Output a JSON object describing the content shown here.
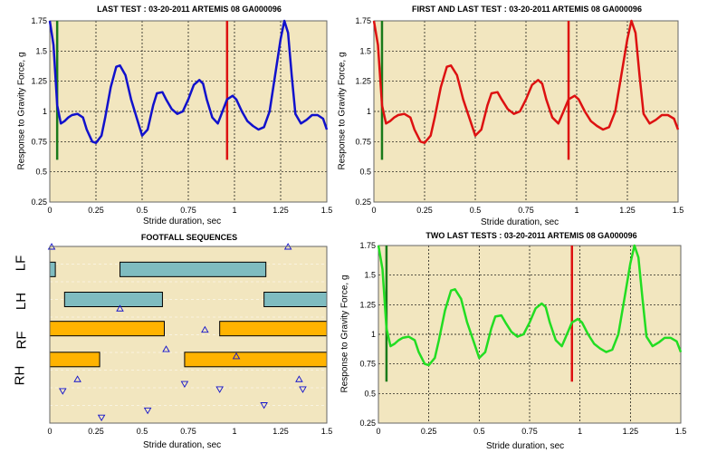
{
  "chart_data": [
    {
      "type": "line",
      "title": "LAST TEST : 03-20-2011 ARTEMIS 08 GA000096",
      "xlabel": "Stride duration, sec",
      "ylabel": "Response to Gravity Force, g",
      "xlim": [
        0,
        1.5
      ],
      "ylim": [
        0.25,
        1.75
      ],
      "grid": true,
      "xticks": [
        "0",
        "0.25",
        "0.5",
        "0.75",
        "1",
        "1.25",
        "1.5"
      ],
      "yticks": [
        "0.25",
        "0.5",
        "0.75",
        "1",
        "1.25",
        "1.5",
        "1.75"
      ],
      "background": "#f2e6bf",
      "vlines": [
        {
          "x": 0.04,
          "y": [
            0.6,
            1.75
          ],
          "color": "#1a7a1a"
        },
        {
          "x": 0.96,
          "y": [
            0.6,
            1.75
          ],
          "color": "#dd1111"
        }
      ],
      "series": [
        {
          "color": "#1111cc",
          "x": [
            0.0,
            0.02,
            0.04,
            0.06,
            0.08,
            0.1,
            0.12,
            0.15,
            0.18,
            0.2,
            0.23,
            0.25,
            0.28,
            0.3,
            0.33,
            0.36,
            0.38,
            0.41,
            0.44,
            0.47,
            0.5,
            0.53,
            0.56,
            0.58,
            0.61,
            0.63,
            0.66,
            0.69,
            0.72,
            0.75,
            0.78,
            0.81,
            0.83,
            0.85,
            0.88,
            0.91,
            0.93,
            0.96,
            0.99,
            1.01,
            1.04,
            1.07,
            1.1,
            1.13,
            1.16,
            1.19,
            1.22,
            1.25,
            1.27,
            1.29,
            1.31,
            1.33,
            1.36,
            1.39,
            1.42,
            1.45,
            1.48,
            1.5
          ],
          "y": [
            1.75,
            1.55,
            1.05,
            0.9,
            0.92,
            0.95,
            0.97,
            0.98,
            0.95,
            0.85,
            0.75,
            0.74,
            0.8,
            0.95,
            1.2,
            1.37,
            1.38,
            1.3,
            1.1,
            0.95,
            0.8,
            0.85,
            1.05,
            1.15,
            1.16,
            1.1,
            1.02,
            0.98,
            1.0,
            1.1,
            1.22,
            1.26,
            1.23,
            1.1,
            0.95,
            0.9,
            0.98,
            1.1,
            1.13,
            1.1,
            1.0,
            0.92,
            0.88,
            0.85,
            0.87,
            1.0,
            1.3,
            1.6,
            1.75,
            1.65,
            1.3,
            0.98,
            0.9,
            0.93,
            0.97,
            0.97,
            0.94,
            0.85
          ]
        }
      ]
    },
    {
      "type": "line",
      "title": "FIRST AND LAST TEST : 03-20-2011 ARTEMIS 08 GA000096",
      "xlabel": "Stride duration, sec",
      "ylabel": "Response to Gravity Force, g",
      "xlim": [
        0,
        1.5
      ],
      "ylim": [
        0.25,
        1.75
      ],
      "grid": true,
      "xticks": [
        "0",
        "0.25",
        "0.5",
        "0.75",
        "1",
        "1.25",
        "1.5"
      ],
      "yticks": [
        "0.25",
        "0.5",
        "0.75",
        "1",
        "1.25",
        "1.5",
        "1.75"
      ],
      "background": "#f2e6bf",
      "vlines": [
        {
          "x": 0.04,
          "y": [
            0.6,
            1.75
          ],
          "color": "#1a7a1a"
        },
        {
          "x": 0.96,
          "y": [
            0.6,
            1.75
          ],
          "color": "#dd1111"
        }
      ],
      "series": [
        {
          "color": "#dd1111",
          "x": [
            0.0,
            0.02,
            0.04,
            0.06,
            0.08,
            0.1,
            0.12,
            0.15,
            0.18,
            0.2,
            0.23,
            0.25,
            0.28,
            0.3,
            0.33,
            0.36,
            0.38,
            0.41,
            0.44,
            0.47,
            0.5,
            0.53,
            0.56,
            0.58,
            0.61,
            0.63,
            0.66,
            0.69,
            0.72,
            0.75,
            0.78,
            0.81,
            0.83,
            0.85,
            0.88,
            0.91,
            0.93,
            0.96,
            0.99,
            1.01,
            1.04,
            1.07,
            1.1,
            1.13,
            1.16,
            1.19,
            1.22,
            1.25,
            1.27,
            1.29,
            1.31,
            1.33,
            1.36,
            1.39,
            1.42,
            1.45,
            1.48,
            1.5
          ],
          "y": [
            1.75,
            1.55,
            1.05,
            0.9,
            0.92,
            0.95,
            0.97,
            0.98,
            0.95,
            0.85,
            0.75,
            0.74,
            0.8,
            0.95,
            1.2,
            1.37,
            1.38,
            1.3,
            1.1,
            0.95,
            0.8,
            0.85,
            1.05,
            1.15,
            1.16,
            1.1,
            1.02,
            0.98,
            1.0,
            1.1,
            1.22,
            1.26,
            1.23,
            1.1,
            0.95,
            0.9,
            0.98,
            1.1,
            1.13,
            1.1,
            1.0,
            0.92,
            0.88,
            0.85,
            0.87,
            1.0,
            1.3,
            1.6,
            1.75,
            1.65,
            1.3,
            0.98,
            0.9,
            0.93,
            0.97,
            0.97,
            0.94,
            0.85
          ]
        }
      ]
    },
    {
      "type": "timeline",
      "title": "FOOTFALL SEQUENCES",
      "xlabel": "Stride duration, sec",
      "xlim": [
        0,
        1.5
      ],
      "xticks": [
        "0",
        "0.25",
        "0.5",
        "0.75",
        "1",
        "1.25",
        "1.5"
      ],
      "background": "#f2e6bf",
      "lanes": [
        {
          "name": "LF",
          "color": "#7fbcc0",
          "bars": [
            [
              0.0,
              0.03
            ],
            [
              0.38,
              1.17
            ]
          ]
        },
        {
          "name": "LH",
          "color": "#7fbcc0",
          "bars": [
            [
              0.08,
              0.61
            ],
            [
              1.16,
              1.5
            ]
          ]
        },
        {
          "name": "RF",
          "color": "#ffb300",
          "bars": [
            [
              0.0,
              0.62
            ],
            [
              0.92,
              1.5
            ]
          ]
        },
        {
          "name": "RH",
          "color": "#ffb300",
          "bars": [
            [
              0.0,
              0.27
            ],
            [
              0.73,
              1.5
            ]
          ]
        }
      ],
      "markers_up": [
        [
          0.01,
          0.0
        ],
        [
          1.29,
          0.0
        ],
        [
          0.38,
          0.35
        ],
        [
          0.84,
          0.47
        ],
        [
          0.63,
          0.58
        ],
        [
          1.01,
          0.62
        ],
        [
          0.15,
          0.75
        ],
        [
          1.35,
          0.75
        ]
      ],
      "markers_down": [
        [
          0.07,
          0.82
        ],
        [
          0.73,
          0.78
        ],
        [
          0.92,
          0.81
        ],
        [
          1.37,
          0.81
        ],
        [
          0.28,
          0.97
        ],
        [
          0.53,
          0.93
        ],
        [
          1.16,
          0.9
        ]
      ]
    },
    {
      "type": "line",
      "title": "TWO LAST TESTS : 03-20-2011 ARTEMIS 08 GA000096",
      "xlabel": "Stride duration, sec",
      "ylabel": "Response to Gravity Force, g",
      "xlim": [
        0,
        1.5
      ],
      "ylim": [
        0.25,
        1.75
      ],
      "grid": true,
      "xticks": [
        "0",
        "0.25",
        "0.5",
        "0.75",
        "1",
        "1.25",
        "1.5"
      ],
      "yticks": [
        "0.25",
        "0.5",
        "0.75",
        "1",
        "1.25",
        "1.5",
        "1.75"
      ],
      "background": "#f2e6bf",
      "vlines": [
        {
          "x": 0.04,
          "y": [
            0.6,
            1.75
          ],
          "color": "#1a7a1a"
        },
        {
          "x": 0.96,
          "y": [
            0.6,
            1.75
          ],
          "color": "#dd1111"
        }
      ],
      "series": [
        {
          "color": "#22dd22",
          "x": [
            0.0,
            0.02,
            0.04,
            0.06,
            0.08,
            0.1,
            0.12,
            0.15,
            0.18,
            0.2,
            0.23,
            0.25,
            0.28,
            0.3,
            0.33,
            0.36,
            0.38,
            0.41,
            0.44,
            0.47,
            0.5,
            0.53,
            0.56,
            0.58,
            0.61,
            0.63,
            0.66,
            0.69,
            0.72,
            0.75,
            0.78,
            0.81,
            0.83,
            0.85,
            0.88,
            0.91,
            0.93,
            0.96,
            0.99,
            1.01,
            1.04,
            1.07,
            1.1,
            1.13,
            1.16,
            1.19,
            1.22,
            1.25,
            1.27,
            1.29,
            1.31,
            1.33,
            1.36,
            1.39,
            1.42,
            1.45,
            1.48,
            1.5
          ],
          "y": [
            1.75,
            1.55,
            1.05,
            0.9,
            0.92,
            0.95,
            0.97,
            0.98,
            0.95,
            0.85,
            0.75,
            0.74,
            0.8,
            0.95,
            1.2,
            1.37,
            1.38,
            1.3,
            1.1,
            0.95,
            0.8,
            0.85,
            1.05,
            1.15,
            1.16,
            1.1,
            1.02,
            0.98,
            1.0,
            1.1,
            1.22,
            1.26,
            1.23,
            1.1,
            0.95,
            0.9,
            0.98,
            1.1,
            1.13,
            1.1,
            1.0,
            0.92,
            0.88,
            0.85,
            0.87,
            1.0,
            1.3,
            1.6,
            1.75,
            1.65,
            1.3,
            0.98,
            0.9,
            0.93,
            0.97,
            0.97,
            0.94,
            0.85
          ]
        }
      ]
    }
  ]
}
